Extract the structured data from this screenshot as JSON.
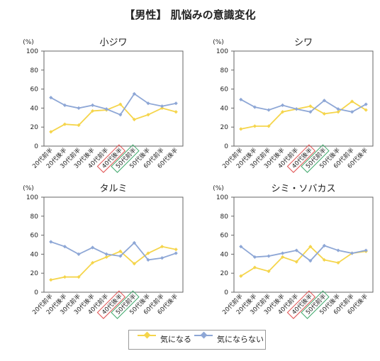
{
  "title": "【男性】 肌悩みの意識変化",
  "colors": {
    "ki_ni_naru": "#F5D54C",
    "ki_ni_naranai": "#8EA7D6",
    "highlight_40": "#E05050",
    "highlight_50": "#3FA86B"
  },
  "legend": {
    "series1": "気になる",
    "series2": "気にならない"
  },
  "chart_data": [
    {
      "type": "line",
      "title": "小ジワ",
      "ylabel": "(%)",
      "ylim": [
        0,
        100
      ],
      "yticks": [
        0,
        20,
        40,
        60,
        80,
        100
      ],
      "categories": [
        "20代前半",
        "20代後半",
        "30代前半",
        "30代後半",
        "40代前半",
        "40代後半",
        "50代前半",
        "50代後半",
        "60代前半",
        "60代後半"
      ],
      "highlight": {
        "40代後半": "red",
        "50代前半": "green"
      },
      "series": [
        {
          "name": "気になる",
          "values": [
            15,
            23,
            22,
            37,
            38,
            44,
            28,
            33,
            40,
            36
          ]
        },
        {
          "name": "気にならない",
          "values": [
            51,
            43,
            40,
            43,
            39,
            33,
            55,
            45,
            42,
            45
          ]
        }
      ]
    },
    {
      "type": "line",
      "title": "シワ",
      "ylabel": "(%)",
      "ylim": [
        0,
        100
      ],
      "yticks": [
        0,
        20,
        40,
        60,
        80,
        100
      ],
      "categories": [
        "20代前半",
        "20代後半",
        "30代前半",
        "30代後半",
        "40代前半",
        "40代後半",
        "50代前半",
        "50代後半",
        "60代前半",
        "60代後半"
      ],
      "highlight": {
        "40代後半": "red",
        "50代前半": "green"
      },
      "series": [
        {
          "name": "気になる",
          "values": [
            18,
            21,
            21,
            36,
            39,
            42,
            34,
            36,
            47,
            38
          ]
        },
        {
          "name": "気にならない",
          "values": [
            49,
            41,
            38,
            43,
            39,
            36,
            48,
            39,
            36,
            44
          ]
        }
      ]
    },
    {
      "type": "line",
      "title": "タルミ",
      "ylabel": "(%)",
      "ylim": [
        0,
        100
      ],
      "yticks": [
        0,
        20,
        40,
        60,
        80,
        100
      ],
      "categories": [
        "20代前半",
        "20代後半",
        "30代前半",
        "30代後半",
        "40代前半",
        "40代後半",
        "50代前半",
        "50代後半",
        "60代前半",
        "60代後半"
      ],
      "highlight": {
        "40代後半": "red",
        "50代前半": "green"
      },
      "series": [
        {
          "name": "気になる",
          "values": [
            13,
            16,
            16,
            31,
            37,
            43,
            30,
            41,
            48,
            45
          ]
        },
        {
          "name": "気にならない",
          "values": [
            53,
            48,
            40,
            47,
            40,
            38,
            52,
            34,
            36,
            41
          ]
        }
      ]
    },
    {
      "type": "line",
      "title": "シミ・ソバカス",
      "ylabel": "(%)",
      "ylim": [
        0,
        100
      ],
      "yticks": [
        0,
        20,
        40,
        60,
        80,
        100
      ],
      "categories": [
        "20代前半",
        "20代後半",
        "30代前半",
        "30代後半",
        "40代前半",
        "40代後半",
        "50代前半",
        "50代後半",
        "60代前半",
        "60代後半"
      ],
      "highlight": {
        "40代後半": "red",
        "50代前半": "green"
      },
      "series": [
        {
          "name": "気になる",
          "values": [
            17,
            26,
            22,
            37,
            32,
            48,
            34,
            31,
            41,
            43
          ]
        },
        {
          "name": "気にならない",
          "values": [
            48,
            37,
            38,
            41,
            44,
            33,
            49,
            44,
            41,
            44
          ]
        }
      ]
    }
  ]
}
